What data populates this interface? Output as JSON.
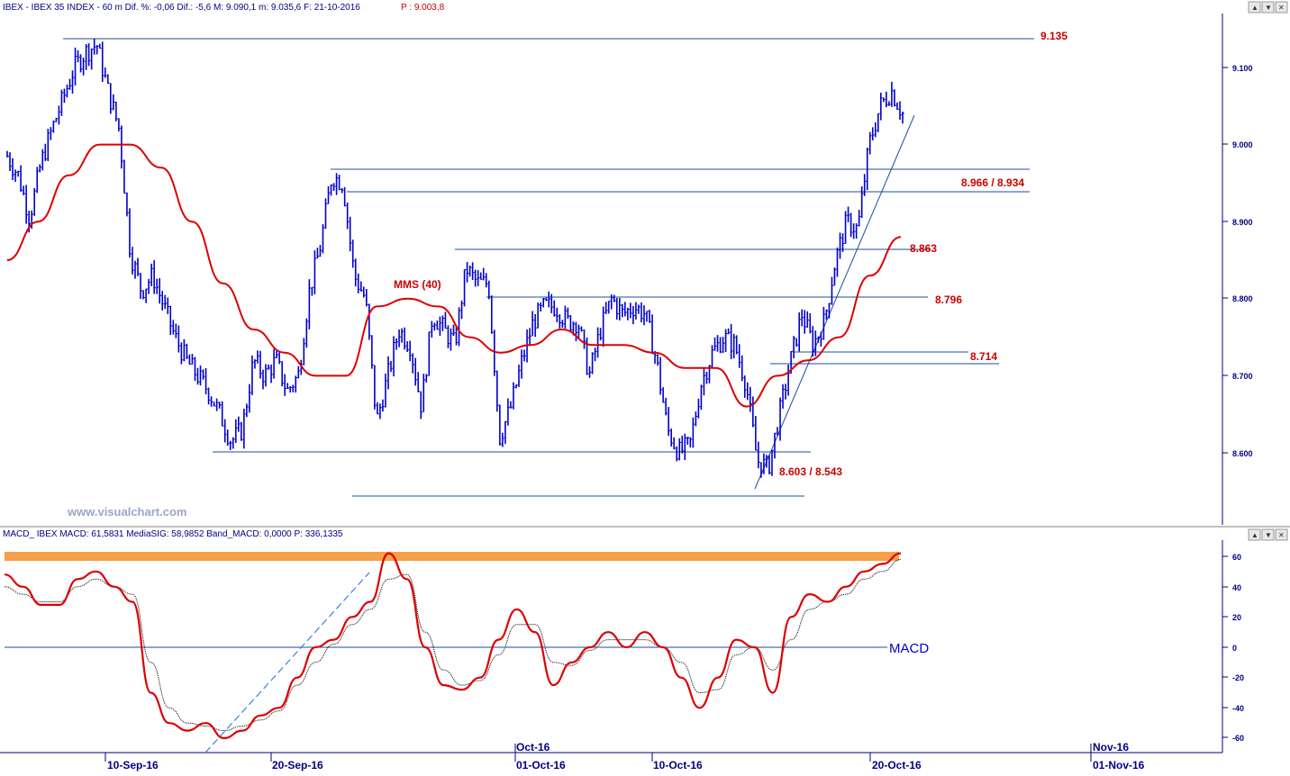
{
  "price_panel": {
    "header_main": "IBEX - IBEX 35 INDEX - 60 m Dif. %: -0,06 Dif.: -5,6 M: 9.090,1 m: 9.035,6 F: 21-10-2016",
    "header_last": "P : 9.003,8",
    "watermark": "www.visualchart.com",
    "ma_label": "MMS (40)",
    "levels": {
      "l9135": "9.135",
      "l8966": "8.966 / 8.934",
      "l8863": "8.863",
      "l8796": "8.796",
      "l8714": "8.714",
      "l8603": "8.603 / 8.543"
    },
    "y_ticks": [
      "9.100",
      "9.000",
      "8.900",
      "8.800",
      "8.700",
      "8.600"
    ]
  },
  "macd_panel": {
    "header": "MACD_ IBEX MACD: 61,5831 MediaSIG: 58,9852 Band_MACD: 0,0000 P: 336,1335",
    "label": "MACD",
    "y_ticks": [
      "60",
      "40",
      "20",
      "0",
      "-20",
      "-40",
      "-60"
    ]
  },
  "x_axis": {
    "ticks": [
      "10-Sep-16",
      "20-Sep-16",
      "01-Oct-16",
      "10-Oct-16",
      "20-Oct-16",
      "01-Nov-16"
    ],
    "month_labels": [
      "Oct-16",
      "Nov-16"
    ]
  },
  "window_buttons": {
    "panel1": [
      "▲",
      "▼",
      "✕"
    ],
    "panel2": [
      "▲",
      "▼",
      "✕"
    ]
  },
  "colors": {
    "bars": "#0000cc",
    "ma": "#dd0000",
    "lines": "#1a4fa0",
    "label": "#cc0000",
    "axis": "#000080",
    "macd": "#dd0000",
    "signal": "#000000",
    "highlight": "#f5a04a"
  },
  "chart_data": [
    {
      "type": "candlestick",
      "title": "IBEX 35 INDEX - 60 m",
      "y_range": [
        8530,
        9170
      ],
      "x_labels": [
        "10-Sep-16",
        "20-Sep-16",
        "01-Oct-16",
        "10-Oct-16",
        "20-Oct-16",
        "01-Nov-16"
      ],
      "close_path": [
        8985,
        8960,
        8905,
        8975,
        9020,
        9060,
        9100,
        9120,
        9130,
        9070,
        9020,
        8860,
        8810,
        8830,
        8790,
        8750,
        8720,
        8700,
        8680,
        8650,
        8615,
        8630,
        8720,
        8700,
        8720,
        8680,
        8700,
        8810,
        8870,
        8960,
        8950,
        8830,
        8800,
        8640,
        8700,
        8760,
        8740,
        8660,
        8780,
        8760,
        8740,
        8840,
        8820,
        8820,
        8620,
        8660,
        8720,
        8770,
        8790,
        8790,
        8770,
        8770,
        8700,
        8760,
        8800,
        8780,
        8790,
        8780,
        8720,
        8630,
        8600,
        8610,
        8690,
        8730,
        8750,
        8740,
        8690,
        8590,
        8580,
        8650,
        8720,
        8780,
        8740,
        8770,
        8850,
        8900,
        8890,
        9000,
        9050,
        9070,
        9040
      ],
      "moving_average": {
        "name": "MMS (40)",
        "path": [
          8850,
          8900,
          8960,
          9000,
          9000,
          8970,
          8900,
          8820,
          8760,
          8730,
          8700,
          8700,
          8790,
          8800,
          8790,
          8750,
          8730,
          8740,
          8760,
          8740,
          8740,
          8730,
          8710,
          8710,
          8660,
          8700,
          8720,
          8750,
          8830,
          8880
        ]
      },
      "horizontal_levels": [
        9135,
        8966,
        8934,
        8863,
        8796,
        8730,
        8714,
        8603,
        8543
      ],
      "level_labels": [
        "9.135",
        "8.966 / 8.934",
        "8.863",
        "8.796",
        "8.714",
        "8.603 / 8.543"
      ],
      "trendline": {
        "from": [
          8543
        ],
        "to": [
          9040
        ]
      }
    },
    {
      "type": "line",
      "title": "MACD",
      "y_range": [
        -70,
        70
      ],
      "series": [
        {
          "name": "MACD",
          "values": [
            48,
            40,
            28,
            28,
            45,
            50,
            40,
            30,
            -30,
            -50,
            -55,
            -50,
            -60,
            -55,
            -45,
            -40,
            -20,
            0,
            5,
            20,
            30,
            62,
            45,
            0,
            -25,
            -28,
            -20,
            5,
            25,
            10,
            -25,
            -10,
            0,
            10,
            0,
            10,
            0,
            -20,
            -40,
            -20,
            5,
            0,
            -30,
            20,
            35,
            30,
            40,
            50,
            55,
            62
          ]
        },
        {
          "name": "MediaSIG",
          "values": [
            40,
            35,
            30,
            30,
            40,
            45,
            40,
            35,
            -10,
            -40,
            -50,
            -52,
            -55,
            -52,
            -48,
            -42,
            -25,
            -10,
            2,
            15,
            25,
            45,
            48,
            10,
            -15,
            -25,
            -22,
            -5,
            15,
            15,
            -10,
            -12,
            -2,
            5,
            5,
            5,
            0,
            -10,
            -30,
            -28,
            -5,
            0,
            -15,
            5,
            25,
            30,
            35,
            45,
            50,
            58
          ]
        }
      ],
      "zero_line": 0,
      "highlight_band": [
        58,
        64
      ]
    }
  ]
}
